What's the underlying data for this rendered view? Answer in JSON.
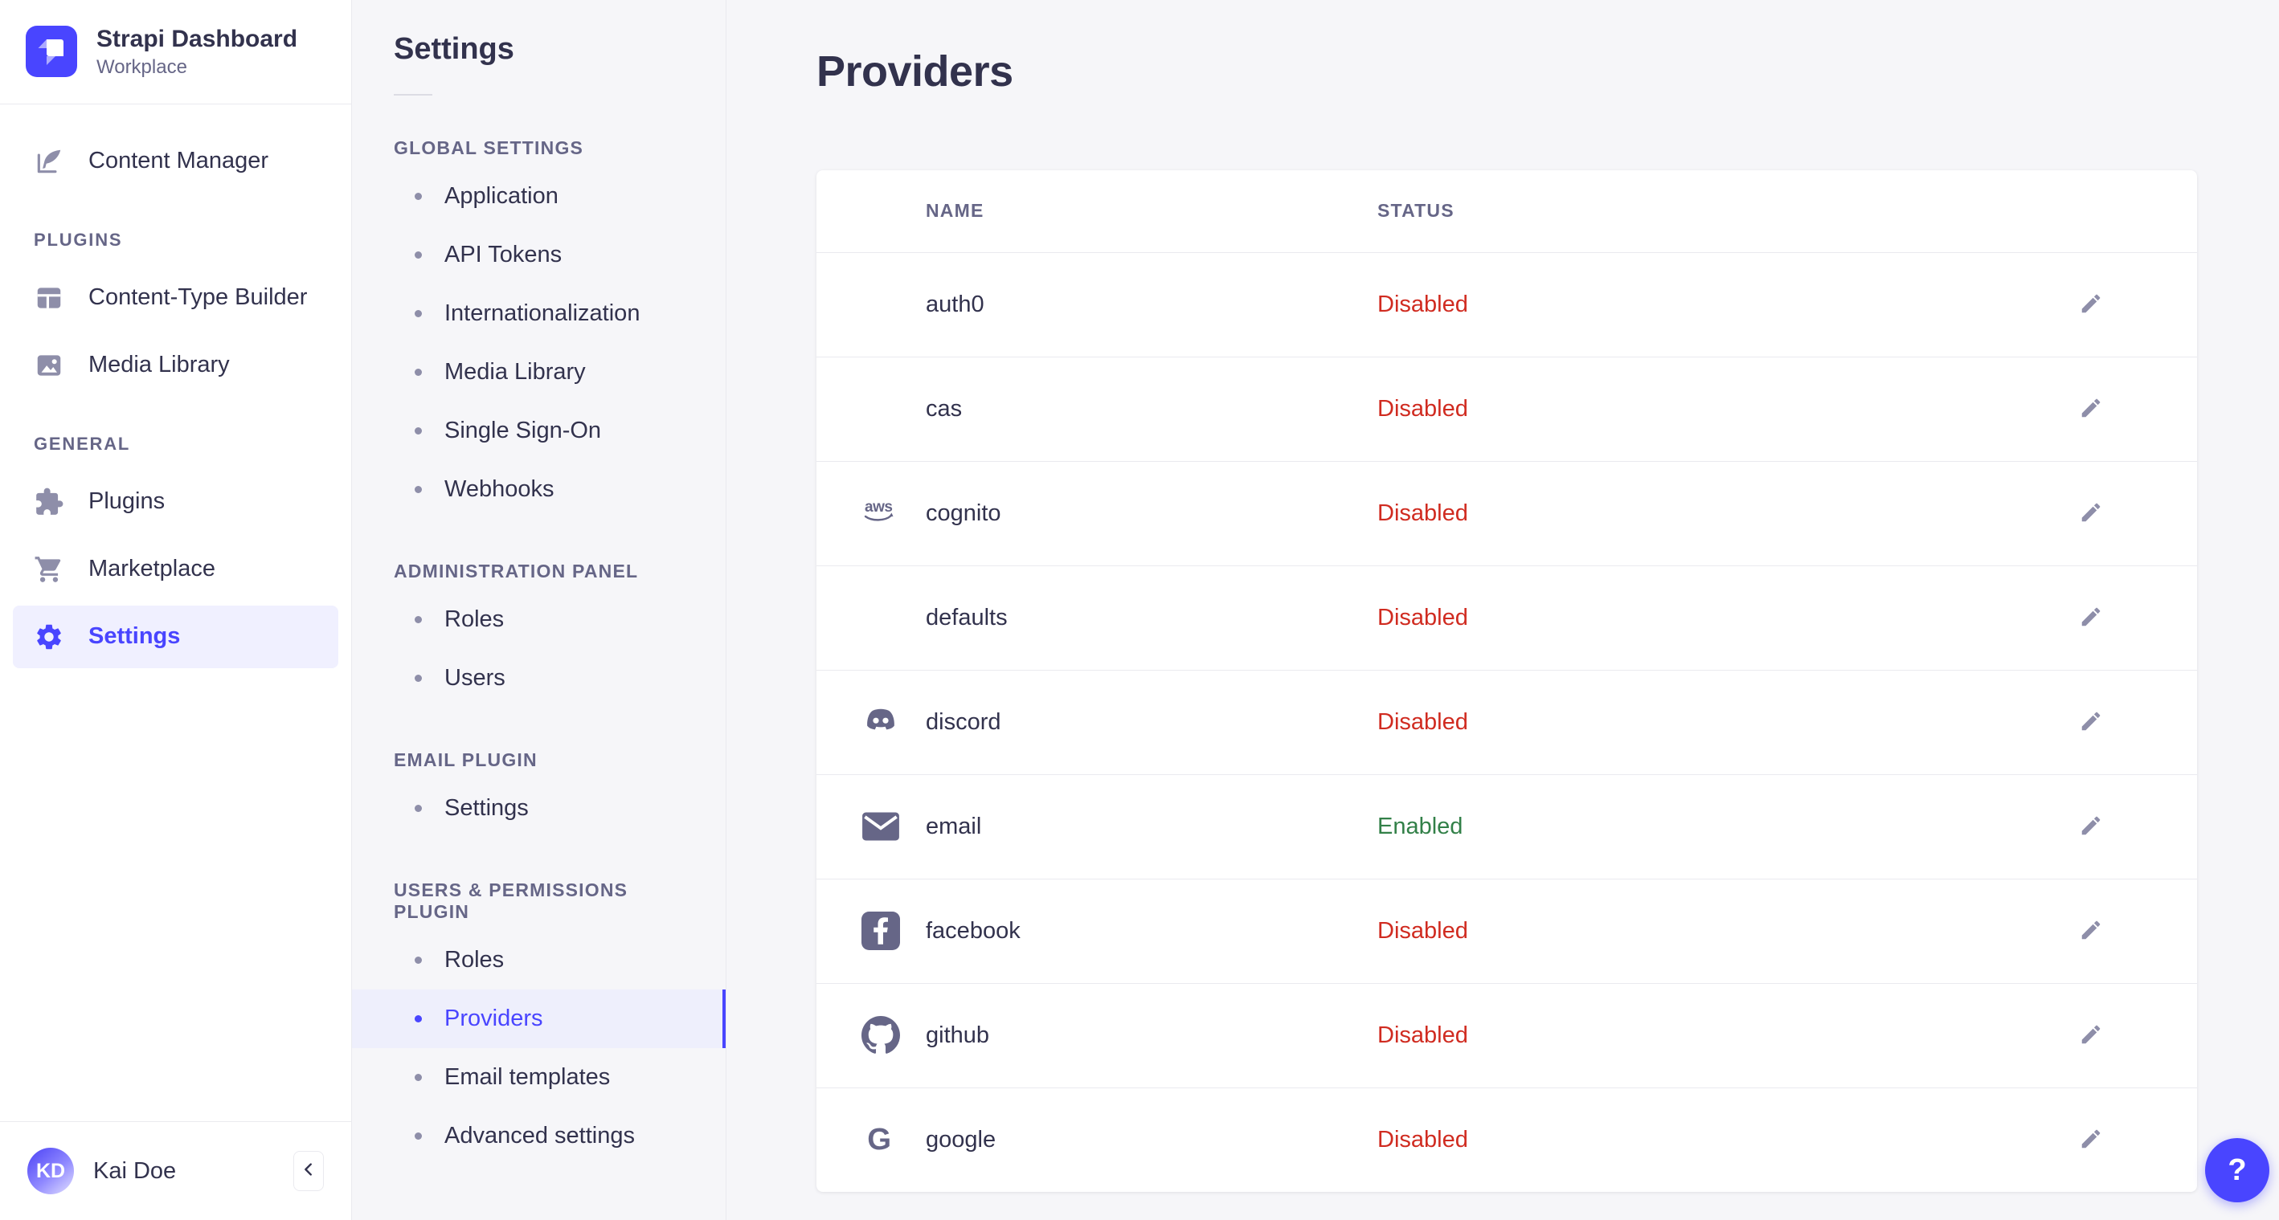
{
  "brand": {
    "title": "Strapi Dashboard",
    "subtitle": "Workplace",
    "logo_icon": "strapi-logo"
  },
  "main_nav": {
    "top_items": [
      {
        "label": "Content Manager",
        "icon": "content-manager-icon",
        "active": false
      }
    ],
    "sections": [
      {
        "label": "PLUGINS",
        "items": [
          {
            "label": "Content-Type Builder",
            "icon": "content-type-builder-icon",
            "active": false
          },
          {
            "label": "Media Library",
            "icon": "media-library-icon",
            "active": false
          }
        ]
      },
      {
        "label": "GENERAL",
        "items": [
          {
            "label": "Plugins",
            "icon": "plugins-icon",
            "active": false
          },
          {
            "label": "Marketplace",
            "icon": "marketplace-icon",
            "active": false
          },
          {
            "label": "Settings",
            "icon": "settings-icon",
            "active": true
          }
        ]
      }
    ],
    "user": {
      "initials": "KD",
      "name": "Kai Doe"
    },
    "collapse_icon": "chevron-left-icon"
  },
  "settings_nav": {
    "title": "Settings",
    "sections": [
      {
        "label": "GLOBAL SETTINGS",
        "items": [
          {
            "label": "Application",
            "active": false
          },
          {
            "label": "API Tokens",
            "active": false
          },
          {
            "label": "Internationalization",
            "active": false
          },
          {
            "label": "Media Library",
            "active": false
          },
          {
            "label": "Single Sign-On",
            "active": false
          },
          {
            "label": "Webhooks",
            "active": false
          }
        ]
      },
      {
        "label": "ADMINISTRATION PANEL",
        "items": [
          {
            "label": "Roles",
            "active": false
          },
          {
            "label": "Users",
            "active": false
          }
        ]
      },
      {
        "label": "EMAIL PLUGIN",
        "items": [
          {
            "label": "Settings",
            "active": false
          }
        ]
      },
      {
        "label": "USERS & PERMISSIONS PLUGIN",
        "items": [
          {
            "label": "Roles",
            "active": false
          },
          {
            "label": "Providers",
            "active": true
          },
          {
            "label": "Email templates",
            "active": false
          },
          {
            "label": "Advanced settings",
            "active": false
          }
        ]
      }
    ]
  },
  "main": {
    "title": "Providers",
    "table": {
      "columns": [
        "NAME",
        "STATUS"
      ],
      "edit_icon": "pencil-icon",
      "rows": [
        {
          "name": "auth0",
          "icon": null,
          "status": "Disabled"
        },
        {
          "name": "cas",
          "icon": null,
          "status": "Disabled"
        },
        {
          "name": "cognito",
          "icon": "aws-icon",
          "status": "Disabled"
        },
        {
          "name": "defaults",
          "icon": null,
          "status": "Disabled"
        },
        {
          "name": "discord",
          "icon": "discord-icon",
          "status": "Disabled"
        },
        {
          "name": "email",
          "icon": "email-icon",
          "status": "Enabled"
        },
        {
          "name": "facebook",
          "icon": "facebook-icon",
          "status": "Disabled"
        },
        {
          "name": "github",
          "icon": "github-icon",
          "status": "Disabled"
        },
        {
          "name": "google",
          "icon": "google-icon",
          "status": "Disabled"
        }
      ]
    }
  },
  "help": {
    "label": "?",
    "icon": "question-mark-icon"
  },
  "colors": {
    "primary": "#4945ff",
    "primary_bg": "#f0f0ff",
    "page_bg": "#f6f6f9",
    "border": "#eaeaef",
    "text_dark": "#32324d",
    "text_muted": "#666687",
    "icon_muted": "#8e8ea9",
    "status_enabled": "#328048",
    "status_disabled": "#d02b20"
  }
}
